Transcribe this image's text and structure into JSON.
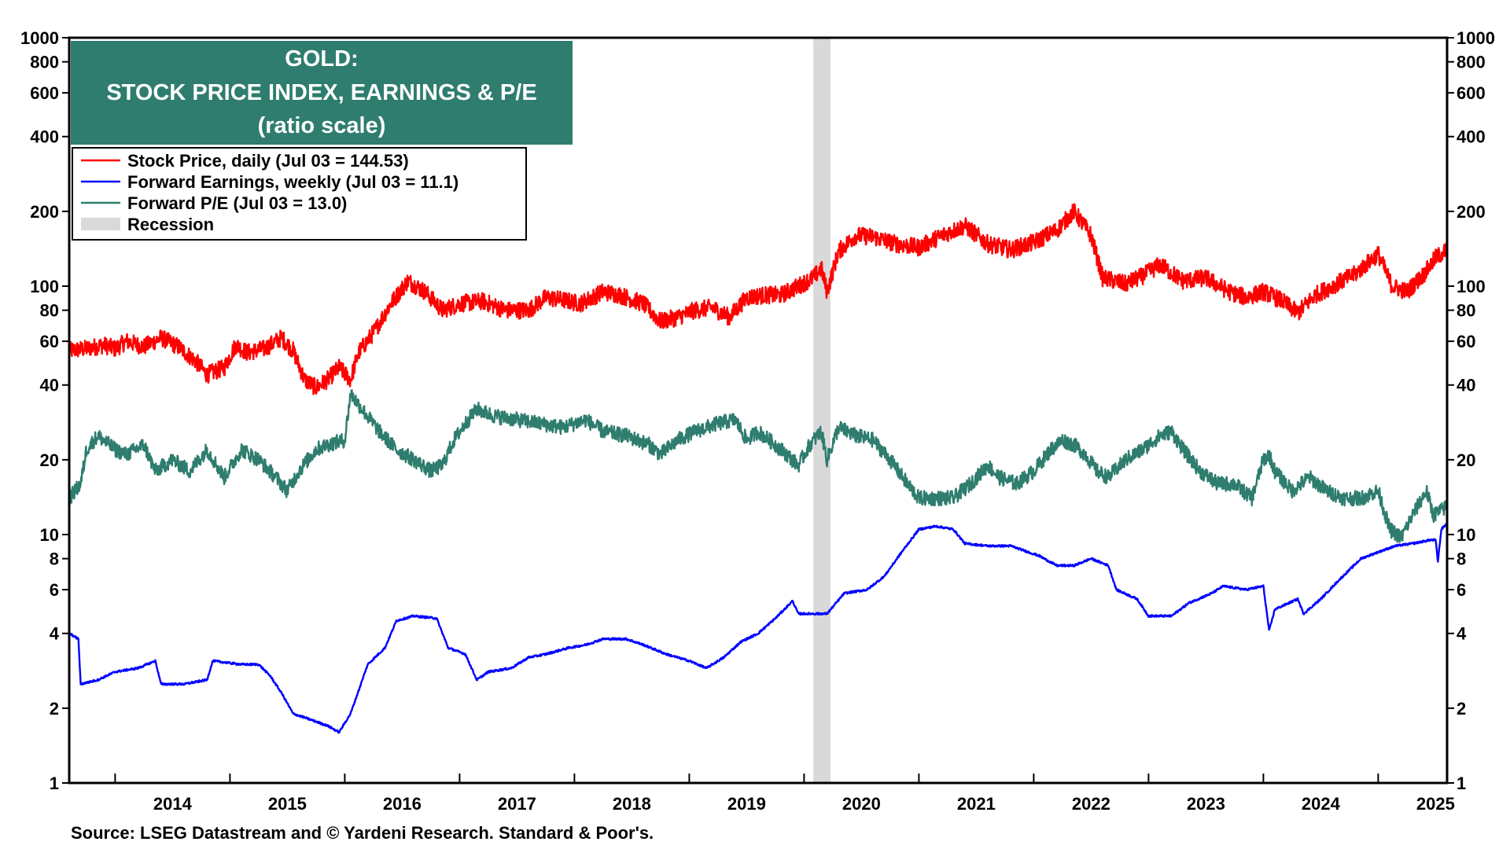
{
  "chart_data": {
    "type": "line",
    "title_lines": [
      "GOLD:",
      "STOCK PRICE INDEX, EARNINGS & P/E",
      "(ratio scale)"
    ],
    "source": "Source: LSEG Datastream and © Yardeni Research. Standard & Poor's.",
    "y_scale": "log",
    "ylim": [
      1,
      1000
    ],
    "xlim": [
      2013.6,
      2025.6
    ],
    "y_ticks": [
      1,
      2,
      4,
      6,
      8,
      10,
      20,
      40,
      60,
      80,
      100,
      200,
      400,
      600,
      800,
      1000
    ],
    "y_tick_labels": [
      "1",
      "2",
      "4",
      "6",
      "8",
      "10",
      "20",
      "40",
      "60",
      "80",
      "100",
      "200",
      "400",
      "600",
      "800",
      "1000"
    ],
    "x_ticks": [
      2014,
      2015,
      2016,
      2017,
      2018,
      2019,
      2020,
      2021,
      2022,
      2023,
      2024,
      2025
    ],
    "x_tick_labels": [
      "2014",
      "2015",
      "2016",
      "2017",
      "2018",
      "2019",
      "2020",
      "2021",
      "2022",
      "2023",
      "2024",
      "2025"
    ],
    "recession": {
      "label": "Recession",
      "start": 2020.08,
      "end": 2020.23,
      "color": "#d9d9d9"
    },
    "colors": {
      "title_bg": "#2e7d6e",
      "title_text": "#ffffff"
    },
    "series": [
      {
        "name": "Stock Price, daily (Jul 03 = 144.53)",
        "color": "#ff0000",
        "points": [
          [
            2013.6,
            55
          ],
          [
            2013.75,
            56
          ],
          [
            2013.9,
            58
          ],
          [
            2014.0,
            56
          ],
          [
            2014.1,
            60
          ],
          [
            2014.25,
            57
          ],
          [
            2014.4,
            62
          ],
          [
            2014.55,
            57
          ],
          [
            2014.7,
            50
          ],
          [
            2014.8,
            44
          ],
          [
            2014.95,
            47
          ],
          [
            2015.05,
            58
          ],
          [
            2015.15,
            54
          ],
          [
            2015.3,
            56
          ],
          [
            2015.45,
            62
          ],
          [
            2015.55,
            55
          ],
          [
            2015.65,
            42
          ],
          [
            2015.75,
            39
          ],
          [
            2015.85,
            42
          ],
          [
            2015.95,
            47
          ],
          [
            2016.05,
            42
          ],
          [
            2016.12,
            54
          ],
          [
            2016.25,
            65
          ],
          [
            2016.4,
            85
          ],
          [
            2016.55,
            105
          ],
          [
            2016.7,
            95
          ],
          [
            2016.85,
            80
          ],
          [
            2017.0,
            85
          ],
          [
            2017.2,
            87
          ],
          [
            2017.4,
            80
          ],
          [
            2017.6,
            80
          ],
          [
            2017.75,
            90
          ],
          [
            2017.9,
            88
          ],
          [
            2018.05,
            85
          ],
          [
            2018.25,
            95
          ],
          [
            2018.4,
            92
          ],
          [
            2018.6,
            85
          ],
          [
            2018.75,
            72
          ],
          [
            2018.9,
            75
          ],
          [
            2019.05,
            80
          ],
          [
            2019.2,
            82
          ],
          [
            2019.35,
            75
          ],
          [
            2019.5,
            90
          ],
          [
            2019.65,
            92
          ],
          [
            2019.8,
            92
          ],
          [
            2019.95,
            100
          ],
          [
            2020.08,
            108
          ],
          [
            2020.15,
            118
          ],
          [
            2020.2,
            95
          ],
          [
            2020.3,
            138
          ],
          [
            2020.45,
            160
          ],
          [
            2020.6,
            158
          ],
          [
            2020.8,
            148
          ],
          [
            2021.0,
            143
          ],
          [
            2021.2,
            160
          ],
          [
            2021.4,
            175
          ],
          [
            2021.6,
            148
          ],
          [
            2021.8,
            140
          ],
          [
            2022.0,
            150
          ],
          [
            2022.2,
            168
          ],
          [
            2022.35,
            200
          ],
          [
            2022.5,
            160
          ],
          [
            2022.6,
            108
          ],
          [
            2022.8,
            102
          ],
          [
            2022.95,
            110
          ],
          [
            2023.1,
            122
          ],
          [
            2023.3,
            105
          ],
          [
            2023.5,
            108
          ],
          [
            2023.7,
            95
          ],
          [
            2023.85,
            90
          ],
          [
            2024.0,
            95
          ],
          [
            2024.15,
            88
          ],
          [
            2024.3,
            78
          ],
          [
            2024.45,
            92
          ],
          [
            2024.6,
            100
          ],
          [
            2024.8,
            112
          ],
          [
            2025.0,
            135
          ],
          [
            2025.12,
            100
          ],
          [
            2025.25,
            95
          ],
          [
            2025.4,
            112
          ],
          [
            2025.5,
            130
          ],
          [
            2025.6,
            140
          ]
        ]
      },
      {
        "name": "Forward Earnings, weekly (Jul 03 = 11.1)",
        "color": "#0000ff",
        "points": [
          [
            2013.6,
            4.0
          ],
          [
            2013.68,
            3.8
          ],
          [
            2013.7,
            2.5
          ],
          [
            2013.85,
            2.6
          ],
          [
            2014.0,
            2.8
          ],
          [
            2014.2,
            2.9
          ],
          [
            2014.35,
            3.1
          ],
          [
            2014.4,
            2.5
          ],
          [
            2014.6,
            2.5
          ],
          [
            2014.8,
            2.6
          ],
          [
            2014.85,
            3.1
          ],
          [
            2015.1,
            3.0
          ],
          [
            2015.25,
            3.0
          ],
          [
            2015.35,
            2.7
          ],
          [
            2015.45,
            2.3
          ],
          [
            2015.55,
            1.9
          ],
          [
            2015.7,
            1.8
          ],
          [
            2015.85,
            1.7
          ],
          [
            2015.95,
            1.6
          ],
          [
            2016.05,
            1.9
          ],
          [
            2016.2,
            3.0
          ],
          [
            2016.35,
            3.5
          ],
          [
            2016.45,
            4.5
          ],
          [
            2016.6,
            4.7
          ],
          [
            2016.8,
            4.6
          ],
          [
            2016.9,
            3.5
          ],
          [
            2017.05,
            3.3
          ],
          [
            2017.15,
            2.6
          ],
          [
            2017.25,
            2.8
          ],
          [
            2017.45,
            2.9
          ],
          [
            2017.6,
            3.2
          ],
          [
            2017.75,
            3.3
          ],
          [
            2017.95,
            3.5
          ],
          [
            2018.1,
            3.6
          ],
          [
            2018.25,
            3.8
          ],
          [
            2018.45,
            3.8
          ],
          [
            2018.6,
            3.6
          ],
          [
            2018.8,
            3.3
          ],
          [
            2019.0,
            3.1
          ],
          [
            2019.15,
            2.9
          ],
          [
            2019.3,
            3.2
          ],
          [
            2019.45,
            3.7
          ],
          [
            2019.6,
            4.0
          ],
          [
            2019.75,
            4.6
          ],
          [
            2019.9,
            5.4
          ],
          [
            2019.95,
            4.8
          ],
          [
            2020.2,
            4.8
          ],
          [
            2020.35,
            5.8
          ],
          [
            2020.55,
            6.0
          ],
          [
            2020.7,
            6.8
          ],
          [
            2020.85,
            8.5
          ],
          [
            2021.0,
            10.5
          ],
          [
            2021.15,
            10.8
          ],
          [
            2021.3,
            10.5
          ],
          [
            2021.4,
            9.2
          ],
          [
            2021.6,
            9.0
          ],
          [
            2021.8,
            9.0
          ],
          [
            2022.05,
            8.2
          ],
          [
            2022.2,
            7.5
          ],
          [
            2022.35,
            7.5
          ],
          [
            2022.5,
            8.0
          ],
          [
            2022.65,
            7.5
          ],
          [
            2022.72,
            6.0
          ],
          [
            2022.9,
            5.5
          ],
          [
            2023.0,
            4.7
          ],
          [
            2023.2,
            4.7
          ],
          [
            2023.35,
            5.3
          ],
          [
            2023.55,
            5.8
          ],
          [
            2023.65,
            6.2
          ],
          [
            2023.85,
            6.0
          ],
          [
            2024.0,
            6.2
          ],
          [
            2024.05,
            4.1
          ],
          [
            2024.1,
            5.0
          ],
          [
            2024.3,
            5.5
          ],
          [
            2024.35,
            4.8
          ],
          [
            2024.5,
            5.5
          ],
          [
            2024.65,
            6.5
          ],
          [
            2024.85,
            8.0
          ],
          [
            2025.0,
            8.5
          ],
          [
            2025.15,
            9.0
          ],
          [
            2025.3,
            9.2
          ],
          [
            2025.45,
            9.5
          ],
          [
            2025.5,
            9.5
          ],
          [
            2025.52,
            7.8
          ],
          [
            2025.55,
            10.5
          ],
          [
            2025.6,
            11.1
          ]
        ]
      },
      {
        "name": "Forward P/E (Jul 03 = 13.0)",
        "color": "#2e7d6e",
        "points": [
          [
            2013.6,
            14
          ],
          [
            2013.7,
            16
          ],
          [
            2013.75,
            22
          ],
          [
            2013.85,
            25
          ],
          [
            2014.0,
            22
          ],
          [
            2014.1,
            21
          ],
          [
            2014.25,
            23
          ],
          [
            2014.35,
            18
          ],
          [
            2014.5,
            20
          ],
          [
            2014.65,
            18
          ],
          [
            2014.8,
            22
          ],
          [
            2014.95,
            17
          ],
          [
            2015.1,
            22
          ],
          [
            2015.25,
            20
          ],
          [
            2015.4,
            17
          ],
          [
            2015.5,
            15
          ],
          [
            2015.6,
            18
          ],
          [
            2015.75,
            22
          ],
          [
            2015.85,
            23
          ],
          [
            2016.0,
            24
          ],
          [
            2016.05,
            37
          ],
          [
            2016.15,
            32
          ],
          [
            2016.3,
            26
          ],
          [
            2016.45,
            22
          ],
          [
            2016.6,
            20
          ],
          [
            2016.75,
            18
          ],
          [
            2016.85,
            19
          ],
          [
            2016.95,
            24
          ],
          [
            2017.05,
            28
          ],
          [
            2017.15,
            32
          ],
          [
            2017.3,
            30
          ],
          [
            2017.5,
            29
          ],
          [
            2017.7,
            28
          ],
          [
            2017.9,
            27
          ],
          [
            2018.1,
            29
          ],
          [
            2018.25,
            26
          ],
          [
            2018.45,
            25
          ],
          [
            2018.65,
            23
          ],
          [
            2018.75,
            21
          ],
          [
            2018.9,
            24
          ],
          [
            2019.05,
            26
          ],
          [
            2019.25,
            28
          ],
          [
            2019.4,
            29
          ],
          [
            2019.5,
            24
          ],
          [
            2019.6,
            26
          ],
          [
            2019.8,
            22
          ],
          [
            2019.95,
            19
          ],
          [
            2020.05,
            23
          ],
          [
            2020.15,
            26
          ],
          [
            2020.2,
            20
          ],
          [
            2020.3,
            27
          ],
          [
            2020.45,
            25
          ],
          [
            2020.6,
            24
          ],
          [
            2020.75,
            20
          ],
          [
            2020.9,
            16
          ],
          [
            2021.0,
            14
          ],
          [
            2021.15,
            14
          ],
          [
            2021.3,
            14
          ],
          [
            2021.45,
            16
          ],
          [
            2021.6,
            19
          ],
          [
            2021.7,
            17
          ],
          [
            2021.85,
            16
          ],
          [
            2022.0,
            18
          ],
          [
            2022.15,
            22
          ],
          [
            2022.25,
            24
          ],
          [
            2022.35,
            23
          ],
          [
            2022.45,
            21
          ],
          [
            2022.55,
            18
          ],
          [
            2022.65,
            17
          ],
          [
            2022.8,
            20
          ],
          [
            2022.95,
            22
          ],
          [
            2023.1,
            25
          ],
          [
            2023.2,
            26
          ],
          [
            2023.3,
            22
          ],
          [
            2023.45,
            18
          ],
          [
            2023.6,
            16
          ],
          [
            2023.75,
            16
          ],
          [
            2023.9,
            14
          ],
          [
            2024.0,
            20
          ],
          [
            2024.05,
            21
          ],
          [
            2024.1,
            18
          ],
          [
            2024.25,
            15
          ],
          [
            2024.4,
            17
          ],
          [
            2024.55,
            15
          ],
          [
            2024.7,
            14
          ],
          [
            2024.85,
            14
          ],
          [
            2025.0,
            15
          ],
          [
            2025.1,
            10.5
          ],
          [
            2025.2,
            9.7
          ],
          [
            2025.3,
            12
          ],
          [
            2025.42,
            15
          ],
          [
            2025.48,
            12
          ],
          [
            2025.55,
            12.5
          ],
          [
            2025.6,
            13
          ]
        ]
      }
    ]
  }
}
